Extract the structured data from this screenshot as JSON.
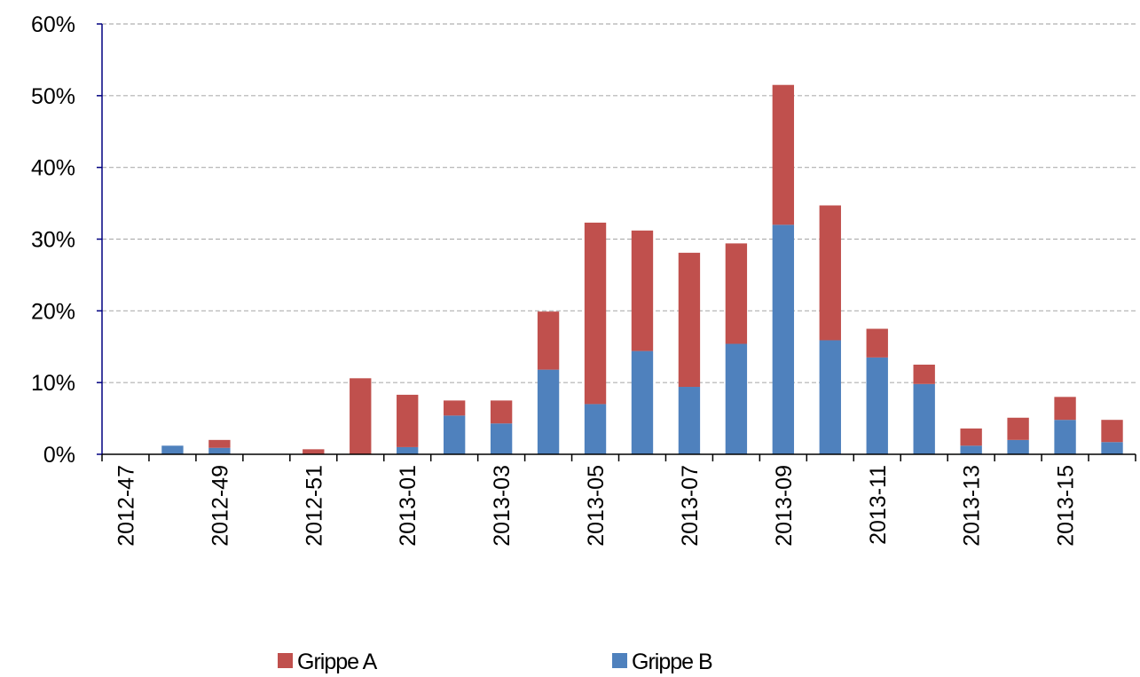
{
  "chart_data": {
    "type": "stacked_bar",
    "categories": [
      "2012-47",
      null,
      "2012-49",
      null,
      "2012-51",
      null,
      "2013-01",
      null,
      "2013-03",
      null,
      "2013-05",
      null,
      "2013-07",
      null,
      "2013-09",
      null,
      "2013-11",
      null,
      "2013-13",
      null,
      "2013-15",
      null
    ],
    "series": [
      {
        "name": "Grippe A",
        "color": "#c0504d",
        "values": [
          0,
          0,
          1.1,
          0,
          0.7,
          10.6,
          7.3,
          2.1,
          3.2,
          8.1,
          25.3,
          16.8,
          18.7,
          14.0,
          19.5,
          18.8,
          4.0,
          2.7,
          2.4,
          3.1,
          3.2,
          3.1
        ]
      },
      {
        "name": "Grippe B",
        "color": "#4f81bd",
        "values": [
          0,
          1.2,
          0.9,
          0,
          0,
          0,
          1.0,
          5.4,
          4.3,
          11.8,
          7.0,
          14.4,
          9.4,
          15.4,
          32.0,
          15.9,
          13.5,
          9.8,
          1.2,
          2.0,
          4.8,
          1.7
        ]
      }
    ],
    "ylim": [
      0,
      60
    ],
    "yticks": [
      {
        "value": 0,
        "label": "0%"
      },
      {
        "value": 10,
        "label": "10%"
      },
      {
        "value": 20,
        "label": "20%"
      },
      {
        "value": 30,
        "label": "30%"
      },
      {
        "value": 40,
        "label": "40%"
      },
      {
        "value": 50,
        "label": "50%"
      },
      {
        "value": 60,
        "label": "60%"
      }
    ],
    "grid": true,
    "legend": "bottom"
  }
}
